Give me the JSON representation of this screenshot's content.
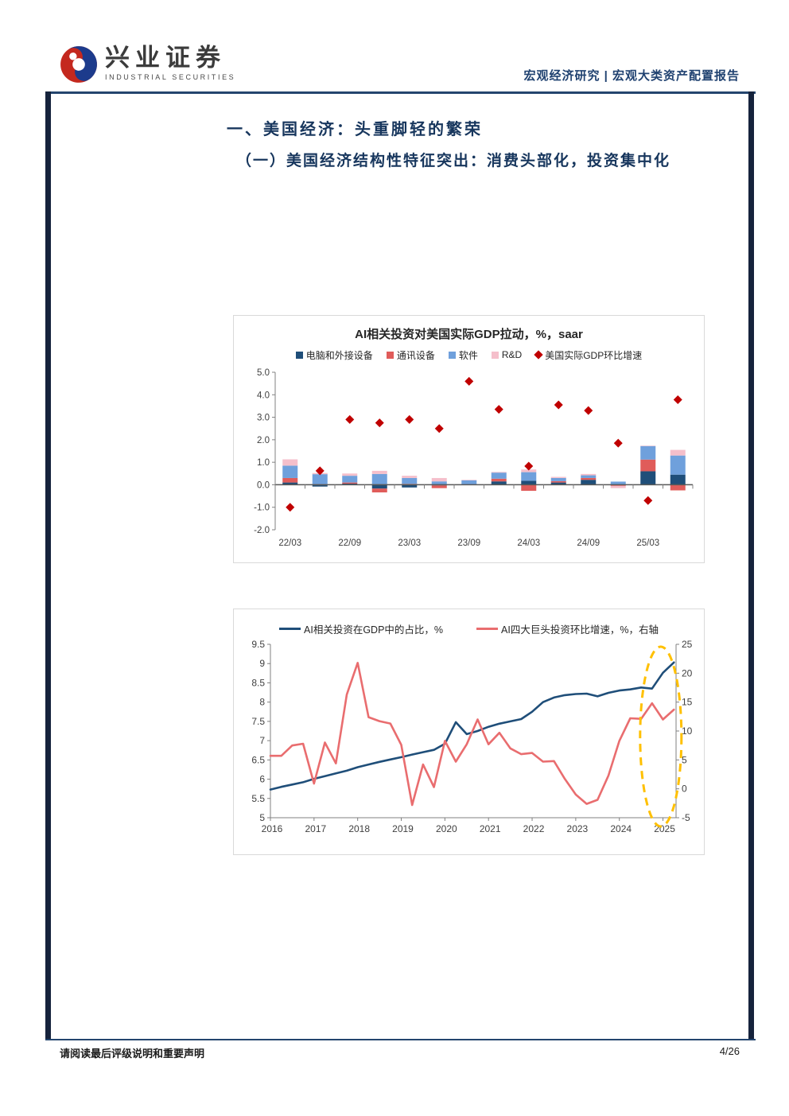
{
  "header": {
    "brand_name": "兴业证券",
    "brand_sub": "INDUSTRIAL SECURITIES",
    "report_type": "宏观经济研究 | 宏观大类资产配置报告"
  },
  "sections": {
    "h1": "一、美国经济：头重脚轻的繁荣",
    "h2": "（一）美国经济结构性特征突出：消费头部化，投资集中化"
  },
  "footer": {
    "disclaimer": "请阅读最后评级说明和重要声明",
    "page": "4/26"
  },
  "colors": {
    "heading": "#17365d",
    "rule": "#24456e",
    "sidebar": "#16233c",
    "axis_line": "#808080",
    "zero_line": "#595959",
    "tick_text": "#404040"
  },
  "chart_data": [
    {
      "type": "bar",
      "title": "AI相关投资对美国实际GDP拉动，%，saar",
      "categories": [
        "22/03",
        "22/06",
        "22/09",
        "22/12",
        "23/03",
        "23/06",
        "23/09",
        "23/12",
        "24/03",
        "24/06",
        "24/09",
        "24/12",
        "25/03",
        "25/06"
      ],
      "x_tick_labels": [
        "22/03",
        "22/09",
        "23/03",
        "23/09",
        "24/03",
        "24/09",
        "25/03"
      ],
      "y_ticks": [
        "5.0",
        "4.0",
        "3.0",
        "2.0",
        "1.0",
        "0.0",
        "-1.0",
        "-2.0"
      ],
      "ylim": [
        -2,
        5
      ],
      "grid": false,
      "legend_position": "top",
      "series": [
        {
          "name": "电脑和外接设备",
          "type": "bar",
          "color": "#1F4E79",
          "values": [
            0.1,
            -0.08,
            0.05,
            -0.17,
            -0.12,
            -0.03,
            0.02,
            0.15,
            0.18,
            0.1,
            0.22,
            0.02,
            0.6,
            0.45
          ]
        },
        {
          "name": "通讯设备",
          "type": "bar",
          "color": "#E05C5A",
          "values": [
            0.2,
            0.02,
            0.05,
            -0.17,
            0.04,
            -0.12,
            0.0,
            0.12,
            -0.27,
            0.06,
            0.08,
            -0.05,
            0.52,
            -0.25
          ]
        },
        {
          "name": "软件",
          "type": "bar",
          "color": "#6FA0DC",
          "values": [
            0.55,
            0.45,
            0.3,
            0.48,
            0.26,
            0.15,
            0.18,
            0.27,
            0.38,
            0.14,
            0.12,
            0.12,
            0.6,
            0.85
          ]
        },
        {
          "name": "R&D",
          "type": "bar",
          "color": "#F5BFCB",
          "values": [
            0.28,
            0.05,
            0.1,
            0.14,
            0.1,
            0.15,
            0.02,
            0.03,
            0.12,
            0.05,
            0.06,
            -0.1,
            0.02,
            0.25
          ]
        },
        {
          "name": "美国实际GDP环比增速",
          "type": "scatter-diamond",
          "color": "#C00000",
          "values": [
            -1.0,
            0.62,
            2.9,
            2.75,
            2.9,
            2.5,
            4.6,
            3.35,
            0.83,
            3.55,
            3.3,
            1.85,
            -0.7,
            3.78
          ]
        }
      ]
    },
    {
      "type": "line",
      "title": "",
      "x_ticks": [
        2016,
        2017,
        2018,
        2019,
        2020,
        2021,
        2022,
        2023,
        2024,
        2025
      ],
      "x_start": 2016.0,
      "x_step": 0.25,
      "x_end_pad": 2025.3,
      "left_ticks": [
        "9.5",
        "9",
        "8.5",
        "8",
        "7.5",
        "7",
        "6.5",
        "6",
        "5.5",
        "5"
      ],
      "right_ticks": [
        "25",
        "20",
        "15",
        "10",
        "5",
        "0",
        "-5"
      ],
      "left_ylim": [
        5,
        9.5
      ],
      "right_ylim": [
        -5,
        25
      ],
      "grid": false,
      "legend_position": "top",
      "series": [
        {
          "name": "AI相关投资在GDP中的占比，%",
          "axis": "left",
          "color": "#1F4E79",
          "values": [
            5.73,
            5.8,
            5.86,
            5.92,
            6.01,
            6.08,
            6.15,
            6.22,
            6.31,
            6.38,
            6.45,
            6.51,
            6.57,
            6.64,
            6.7,
            6.76,
            6.92,
            7.48,
            7.17,
            7.25,
            7.36,
            7.44,
            7.5,
            7.56,
            7.75,
            8.0,
            8.12,
            8.18,
            8.21,
            8.22,
            8.15,
            8.24,
            8.3,
            8.33,
            8.38,
            8.35,
            8.76,
            9.03
          ]
        },
        {
          "name": "AI四大巨头投资环比增速，%，右轴",
          "axis": "right",
          "color": "#E96D6F",
          "values": [
            5.7,
            5.7,
            7.5,
            7.8,
            0.9,
            8.0,
            4.4,
            16.3,
            21.8,
            12.4,
            11.7,
            11.3,
            7.6,
            -2.8,
            4.2,
            0.3,
            8.3,
            4.7,
            7.7,
            12.0,
            7.7,
            9.7,
            7.0,
            6.0,
            6.2,
            4.7,
            4.8,
            1.7,
            -1.0,
            -2.6,
            -1.9,
            2.3,
            8.3,
            12.2,
            12.1,
            14.8,
            12.0,
            13.7
          ]
        }
      ],
      "annotation": {
        "type": "dashed-ellipse",
        "color": "#FFC000",
        "x_center": 2024.95
      }
    }
  ]
}
